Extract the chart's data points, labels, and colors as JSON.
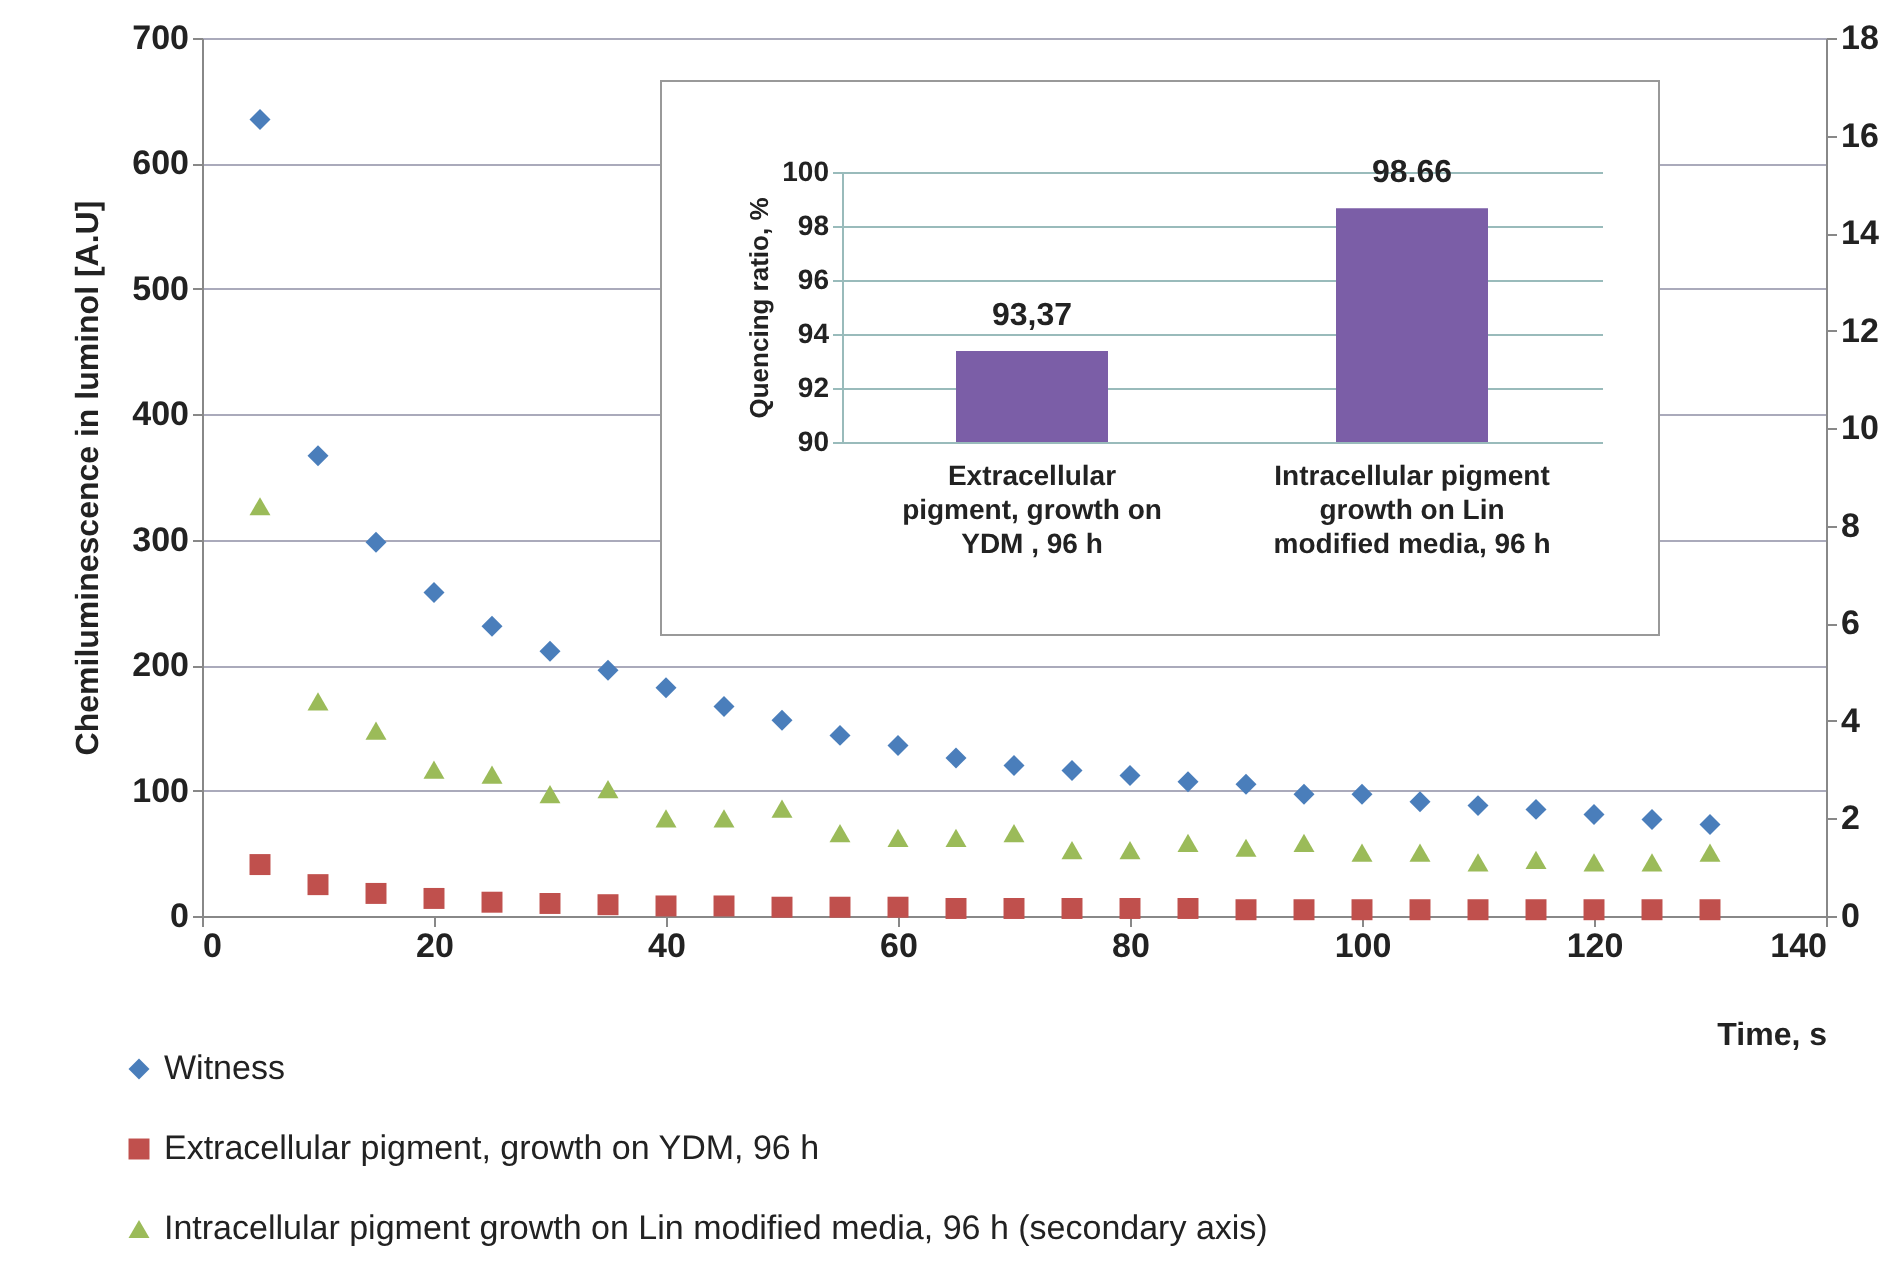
{
  "chart_data": [
    {
      "type": "scatter",
      "xlabel": "Time, s",
      "ylabel": "Chemiluminescence in  luminol [A.U]",
      "x": [
        5,
        10,
        15,
        20,
        25,
        30,
        35,
        40,
        45,
        50,
        55,
        60,
        65,
        70,
        75,
        80,
        85,
        90,
        95,
        100,
        105,
        110,
        115,
        120,
        125,
        130
      ],
      "series": [
        {
          "name": "Witness",
          "color": "#4a7ebb",
          "marker": "diamond",
          "values": [
            635,
            367,
            298,
            258,
            231,
            211,
            196,
            182,
            167,
            156,
            144,
            136,
            126,
            120,
            116,
            112,
            107,
            105,
            97,
            97,
            91,
            88,
            85,
            81,
            77,
            73
          ]
        },
        {
          "name": "Extracellular pigment, growth on YDM, 96 h",
          "color": "#c0504d",
          "marker": "square",
          "values": [
            41,
            25,
            18,
            14,
            11,
            10,
            9,
            8,
            8,
            7,
            7,
            7,
            6,
            6,
            6,
            6,
            6,
            5,
            5,
            5,
            5,
            5,
            5,
            5,
            5,
            5
          ]
        },
        {
          "name": "Intracellular pigment growth on Lin modified media, 96 h (secondary axis)",
          "color": "#9bbb59",
          "marker": "triangle",
          "axis": "y2",
          "values": [
            8.4,
            4.4,
            3.8,
            3.0,
            2.9,
            2.5,
            2.6,
            2.0,
            2.0,
            2.2,
            1.7,
            1.6,
            1.6,
            1.7,
            1.35,
            1.35,
            1.5,
            1.4,
            1.5,
            1.3,
            1.3,
            1.1,
            1.15,
            1.1,
            1.1,
            1.3
          ]
        }
      ],
      "xlim": [
        0,
        140
      ],
      "xticks": [
        0,
        20,
        40,
        60,
        80,
        100,
        120,
        140
      ],
      "ylim": [
        0,
        700
      ],
      "yticks": [
        0,
        100,
        200,
        300,
        400,
        500,
        600,
        700
      ],
      "y2lim": [
        0,
        18
      ],
      "y2ticks": [
        0,
        2,
        4,
        6,
        8,
        10,
        12,
        14,
        16,
        18
      ],
      "grid": "y",
      "legend": "bottom"
    },
    {
      "type": "bar",
      "ylabel": "Quencing  ratio, %",
      "categories": [
        "Extracellular pigment, growth on YDM , 96 h",
        "Intracellular pigment growth on Lin modified media, 96 h"
      ],
      "values": [
        93.37,
        98.66
      ],
      "value_labels": [
        "93,37",
        "98.66"
      ],
      "colors": [
        "#7b5ea7",
        "#7b5ea7"
      ],
      "ylim": [
        90,
        100
      ],
      "yticks": [
        90,
        92,
        94,
        96,
        98,
        100
      ],
      "grid": true
    }
  ]
}
